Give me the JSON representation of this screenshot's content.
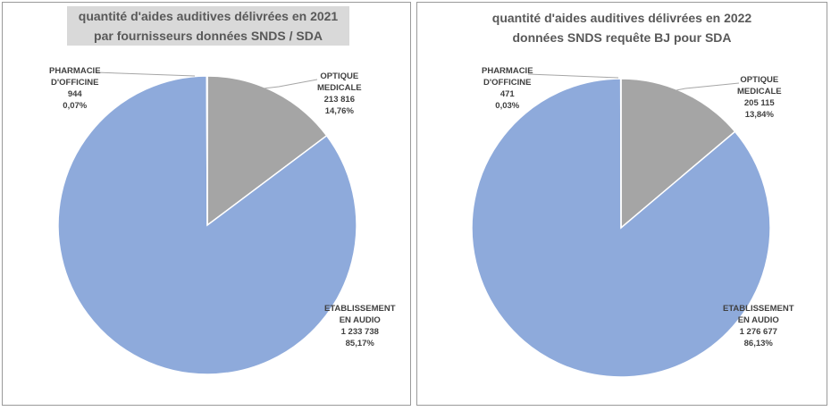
{
  "chart_data": [
    {
      "type": "pie",
      "title": [
        "quantité d'aides auditives délivrées en 2021",
        "par fournisseurs données SNDS / SDA"
      ],
      "slices": [
        {
          "name": [
            "OPTIQUE",
            "MEDICALE"
          ],
          "value": 213816,
          "value_label": "213 816",
          "pct_label": "14,76%",
          "color": "#a5a5a5"
        },
        {
          "name": [
            "ETABLISSEMENT",
            "EN AUDIO"
          ],
          "value": 1233738,
          "value_label": "1 233 738",
          "pct_label": "85,17%",
          "color": "#8eaadb"
        },
        {
          "name": [
            "PHARMACIE",
            "D'OFFICINE"
          ],
          "value": 944,
          "value_label": "944",
          "pct_label": "0,07%",
          "color": "#8eaadb"
        }
      ]
    },
    {
      "type": "pie",
      "title": [
        "quantité d'aides auditives délivrées en 2022",
        "données SNDS requête BJ pour SDA"
      ],
      "slices": [
        {
          "name": [
            "OPTIQUE",
            "MEDICALE"
          ],
          "value": 205115,
          "value_label": "205 115",
          "pct_label": "13,84%",
          "color": "#a5a5a5"
        },
        {
          "name": [
            "ETABLISSEMENT",
            "EN AUDIO"
          ],
          "value": 1276677,
          "value_label": "1 276 677",
          "pct_label": "86,13%",
          "color": "#8eaadb"
        },
        {
          "name": [
            "PHARMACIE",
            "D'OFFICINE"
          ],
          "value": 471,
          "value_label": "471",
          "pct_label": "0,03%",
          "color": "#8eaadb"
        }
      ]
    }
  ]
}
